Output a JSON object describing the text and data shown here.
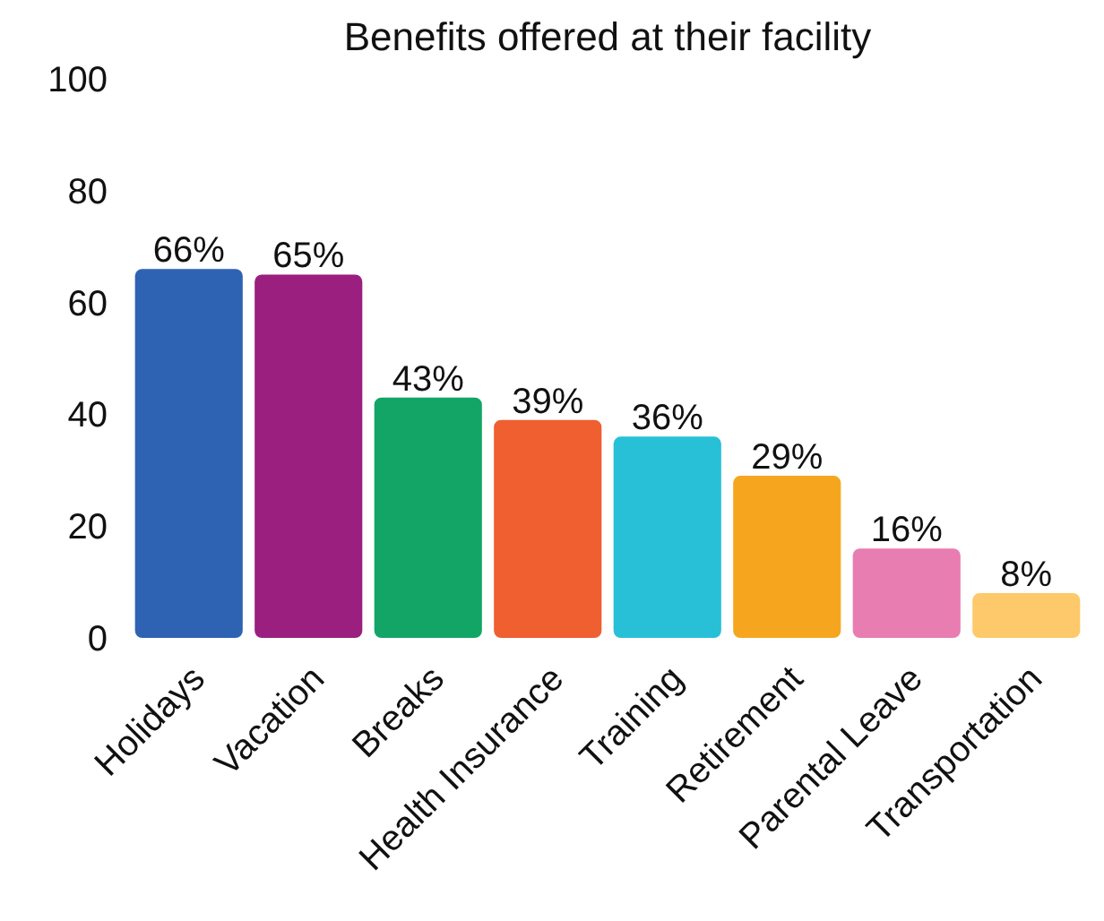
{
  "chart_data": {
    "type": "bar",
    "title": "Benefits offered at their facility",
    "categories": [
      "Holidays",
      "Vacation",
      "Breaks",
      "Health Insurance",
      "Training",
      "Retirement",
      "Parental Leave",
      "Transportation"
    ],
    "values": [
      66,
      65,
      43,
      39,
      36,
      29,
      16,
      8
    ],
    "value_labels": [
      "66%",
      "65%",
      "43%",
      "39%",
      "36%",
      "29%",
      "16%",
      "8%"
    ],
    "colors": [
      "#2e62b3",
      "#9b1f7e",
      "#12a566",
      "#ef5f30",
      "#28c0d6",
      "#f6a61e",
      "#e87db2",
      "#fdc96a"
    ],
    "ylim": [
      0,
      100
    ],
    "yticks": [
      0,
      20,
      40,
      60,
      80,
      100
    ],
    "grid": false
  }
}
